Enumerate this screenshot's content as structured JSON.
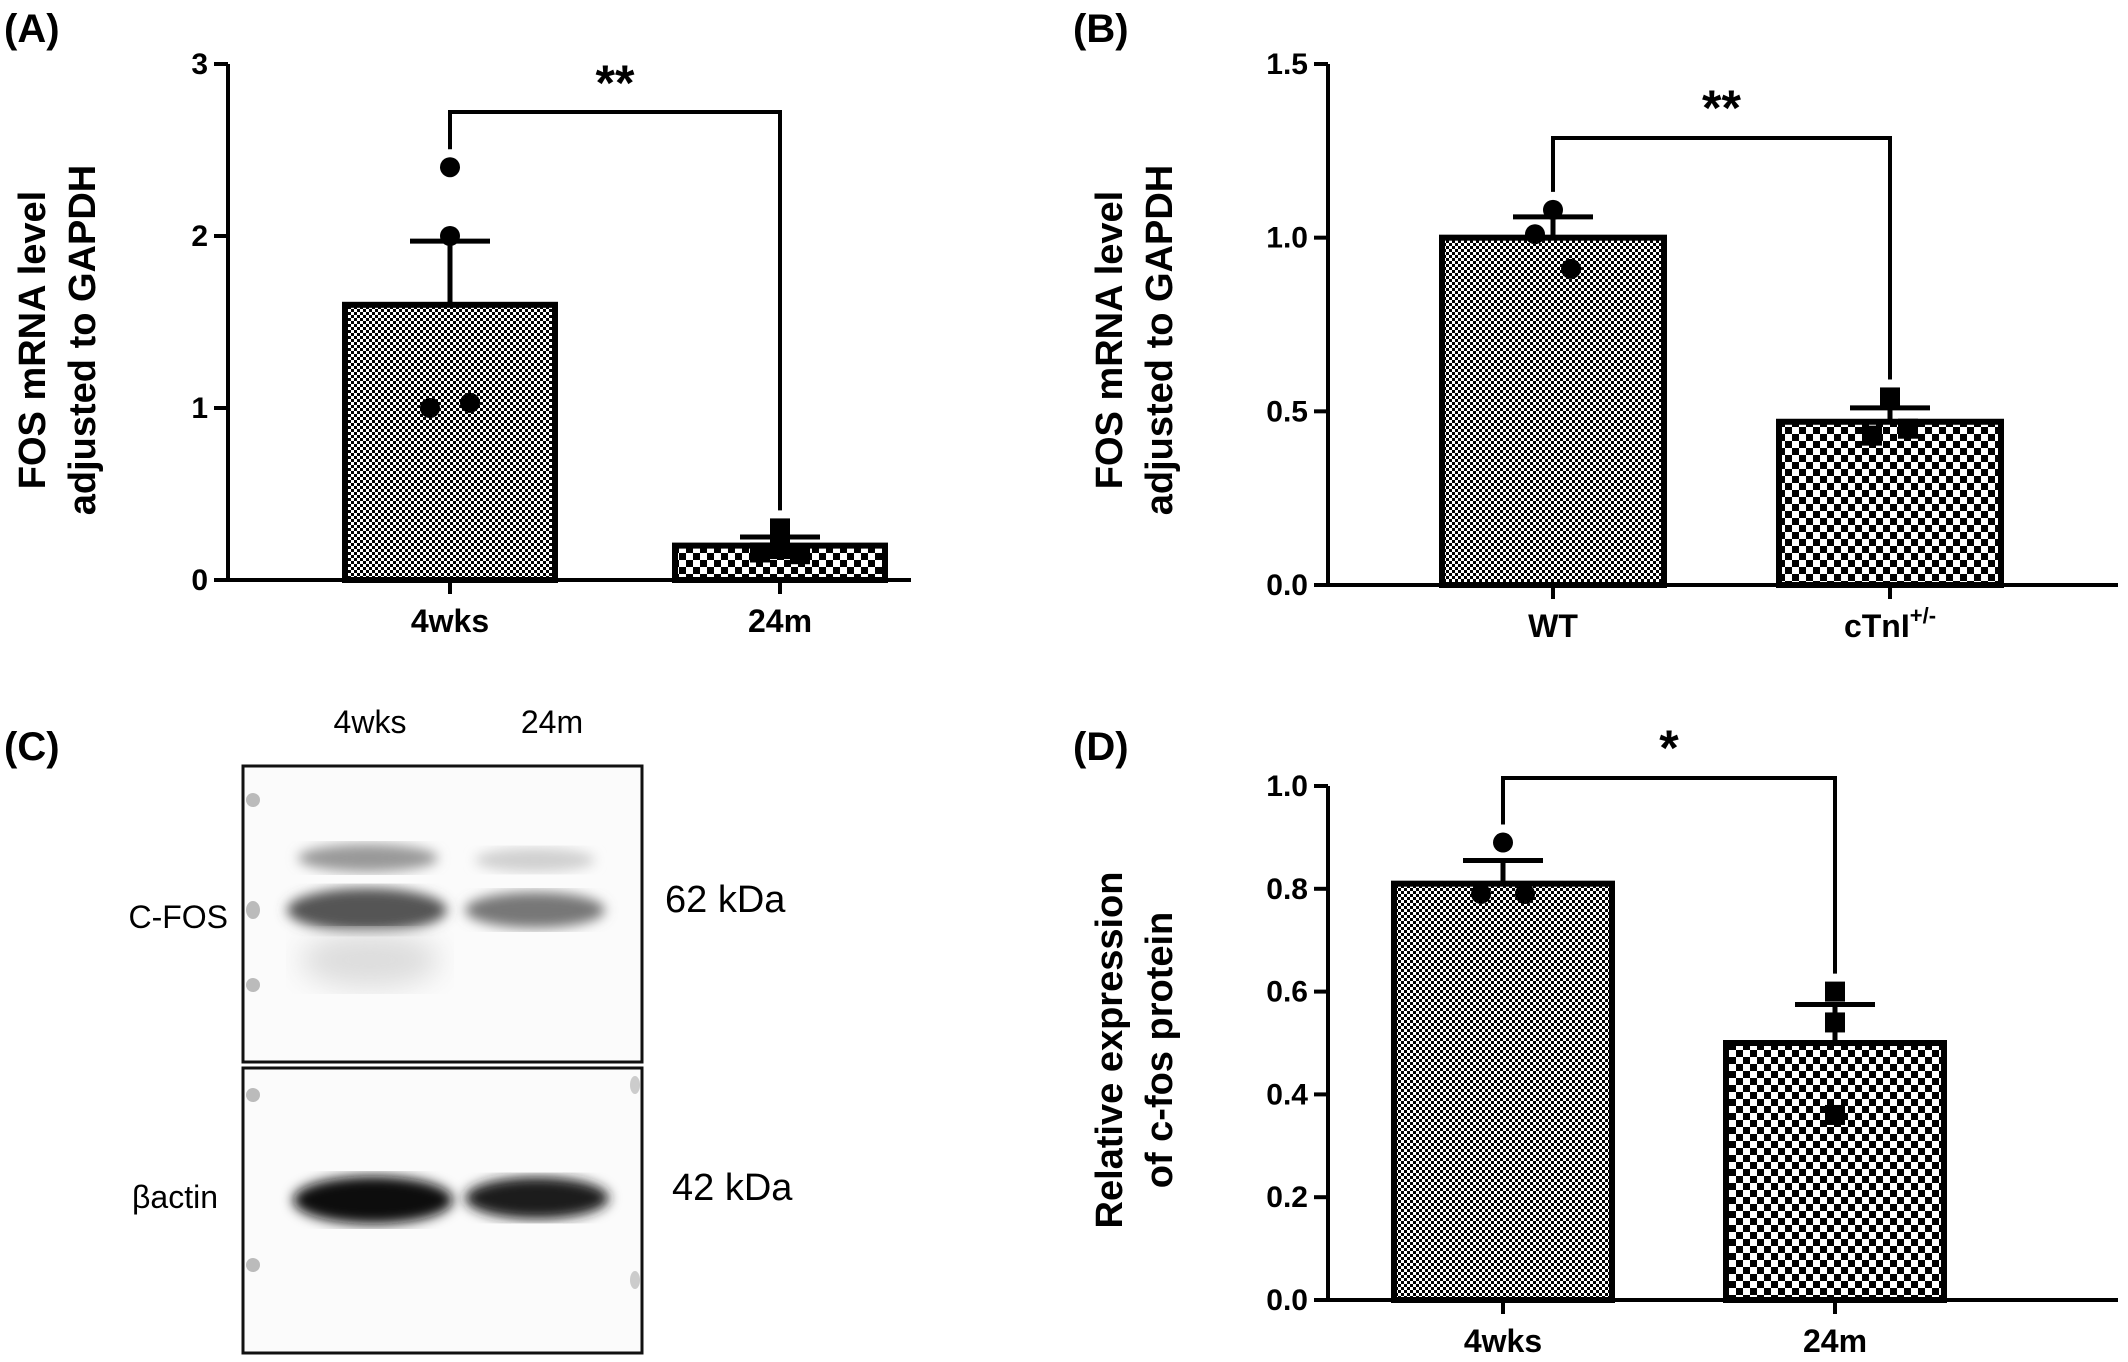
{
  "chart_data": [
    {
      "panel": "(A)",
      "type": "bar",
      "ylabel": [
        "FOS mRNA level",
        "adjusted to GAPDH"
      ],
      "categories": [
        "4wks",
        "24m"
      ],
      "values": [
        1.6,
        0.2
      ],
      "sem": [
        0.37,
        0.05
      ],
      "points": [
        [
          2.4,
          2.0,
          1.0,
          1.03
        ],
        [
          0.3,
          0.18,
          0.16,
          0.15
        ]
      ],
      "markers": [
        "circle",
        "square"
      ],
      "ylim": [
        0,
        3
      ],
      "yticks": [
        0,
        1,
        2,
        3
      ],
      "significance": "**"
    },
    {
      "panel": "(B)",
      "type": "bar",
      "ylabel": [
        "FOS mRNA level",
        "adjusted to GAPDH"
      ],
      "categories": [
        "WT",
        "cTnI"
      ],
      "category_superscripts": [
        "",
        "+/-"
      ],
      "values": [
        1.0,
        0.47
      ],
      "sem": [
        0.06,
        0.04
      ],
      "points": [
        [
          1.08,
          1.01,
          0.91
        ],
        [
          0.54,
          0.43,
          0.45
        ]
      ],
      "markers": [
        "circle",
        "square"
      ],
      "ylim": [
        0,
        1.5
      ],
      "yticks": [
        "0.0",
        "0.5",
        "1.0",
        "1.5"
      ],
      "significance": "**"
    },
    {
      "panel": "(D)",
      "type": "bar",
      "ylabel": [
        "Relative expression",
        "of c-fos protein"
      ],
      "categories": [
        "4wks",
        "24m"
      ],
      "values": [
        0.81,
        0.5
      ],
      "sem": [
        0.045,
        0.075
      ],
      "points": [
        [
          0.89,
          0.79,
          0.79
        ],
        [
          0.6,
          0.54,
          0.36
        ]
      ],
      "markers": [
        "circle",
        "square"
      ],
      "ylim": [
        0,
        1.0
      ],
      "yticks": [
        "0.0",
        "0.2",
        "0.4",
        "0.6",
        "0.8",
        "1.0"
      ],
      "significance": "*"
    }
  ],
  "blot": {
    "panel": "(C)",
    "lanes": [
      "4wks",
      "24m"
    ],
    "bands": [
      {
        "label": "C-FOS",
        "kda": "62 kDa"
      },
      {
        "label": "βactin",
        "kda": "42 kDa"
      }
    ]
  },
  "colors": {
    "bar_fill": "#9a9a9a",
    "checker_dark": "#000000",
    "checker_light": "#ffffff",
    "axis": "#000000"
  }
}
